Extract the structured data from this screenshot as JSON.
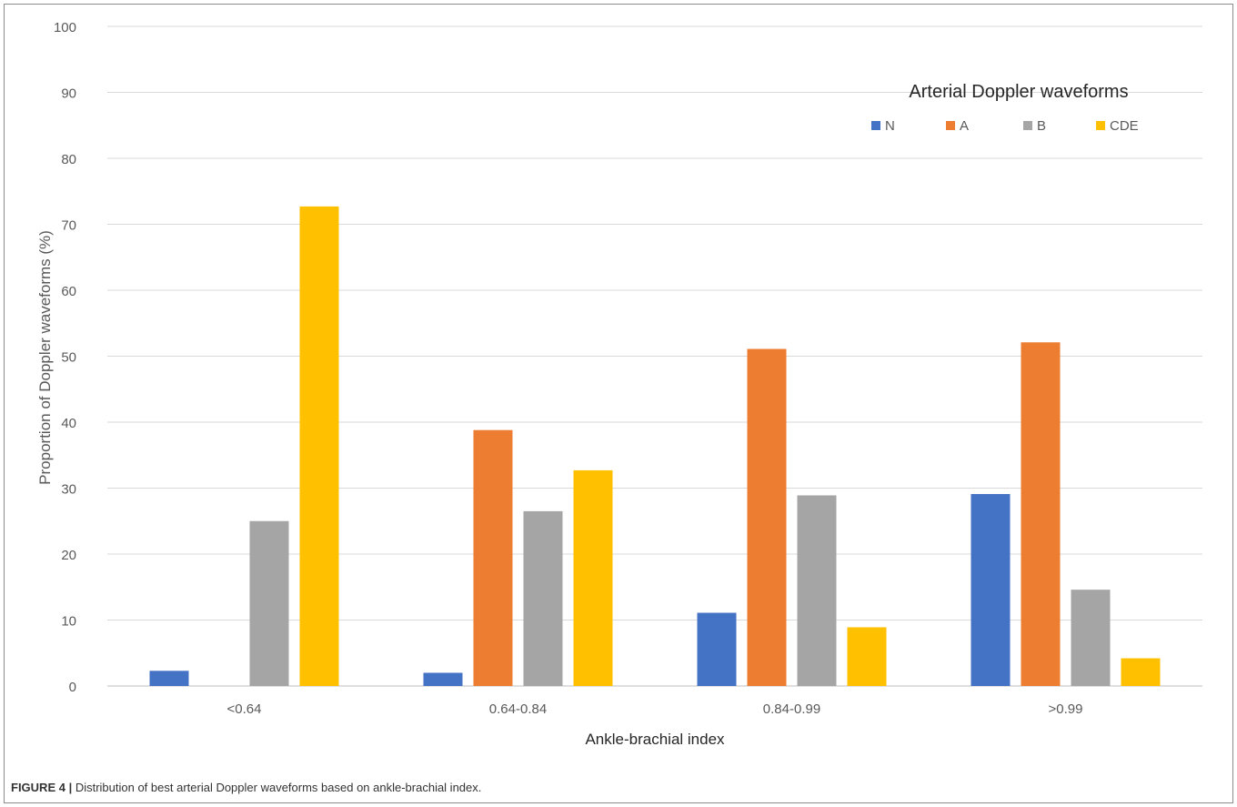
{
  "chart_data": {
    "type": "bar",
    "title": "Arterial Doppler waveforms",
    "xlabel": "Ankle-brachial index",
    "ylabel": "Proportion of  Doppler waveforms (%)",
    "ylim": [
      0,
      100
    ],
    "yticks": [
      "0",
      "10",
      "20",
      "30",
      "40",
      "50",
      "60",
      "70",
      "80",
      "90",
      "100"
    ],
    "categories": [
      "<0.64",
      "0.64-0.84",
      "0.84-0.99",
      ">0.99"
    ],
    "series": [
      {
        "name": "N",
        "color": "#4472c4",
        "values": [
          2.3,
          2.0,
          11.1,
          29.1
        ]
      },
      {
        "name": "A",
        "color": "#ed7d31",
        "values": [
          0,
          38.8,
          51.1,
          52.1
        ]
      },
      {
        "name": "B",
        "color": "#a5a5a5",
        "values": [
          25.0,
          26.5,
          28.9,
          14.6
        ]
      },
      {
        "name": "CDE",
        "color": "#ffc000",
        "values": [
          72.7,
          32.7,
          8.9,
          4.2
        ]
      }
    ],
    "grid": true,
    "legend_position": "top-right"
  },
  "caption": {
    "label": "FIGURE 4 |",
    "text": " Distribution of best arterial Doppler waveforms based on ankle-brachial index."
  }
}
